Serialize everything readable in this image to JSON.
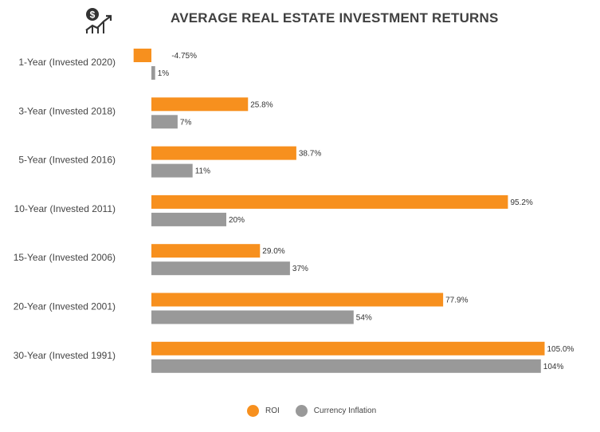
{
  "chart_data": {
    "type": "bar",
    "orientation": "horizontal",
    "title": "AVERAGE REAL ESTATE INVESTMENT RETURNS",
    "categories": [
      "1-Year (Invested 2020)",
      "3-Year (Invested 2018)",
      "5-Year (Invested 2016)",
      "10-Year (Invested 2011)",
      "15-Year (Invested 2006)",
      "20-Year (Invested 2001)",
      "30-Year (Invested 1991)"
    ],
    "series": [
      {
        "name": "ROI",
        "color": "#F7901E",
        "values": [
          -4.75,
          25.8,
          38.7,
          95.2,
          29.0,
          77.9,
          105.0
        ],
        "labels": [
          "-4.75%",
          "25.8%",
          "38.7%",
          "95.2%",
          "29.0%",
          "77.9%",
          "105.0%"
        ]
      },
      {
        "name": "Currency Inflation",
        "color": "#999999",
        "values": [
          1,
          7,
          11,
          20,
          37,
          54,
          104
        ],
        "labels": [
          "1%",
          "7%",
          "11%",
          "20%",
          "37%",
          "54%",
          "104%"
        ]
      }
    ],
    "xlim": [
      -4.75,
      105
    ],
    "legend_position": "bottom-center",
    "grid": false
  },
  "icon": "money-growth-icon"
}
